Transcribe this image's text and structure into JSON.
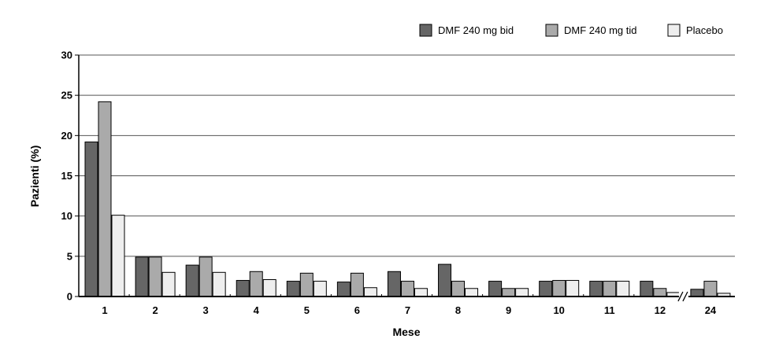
{
  "chart_data": {
    "type": "bar",
    "categories": [
      "1",
      "2",
      "3",
      "4",
      "5",
      "6",
      "7",
      "8",
      "9",
      "10",
      "11",
      "12",
      "24"
    ],
    "series": [
      {
        "name": "DMF 240 mg bid",
        "color": "#666666",
        "values": [
          19.2,
          4.9,
          3.9,
          2.0,
          1.9,
          1.8,
          3.1,
          4.0,
          1.9,
          1.9,
          1.9,
          1.9,
          0.9
        ]
      },
      {
        "name": "DMF 240 mg tid",
        "color": "#aaaaaa",
        "values": [
          24.2,
          4.9,
          4.9,
          3.1,
          2.9,
          2.9,
          1.9,
          1.9,
          1.0,
          2.0,
          1.9,
          1.0,
          1.9
        ]
      },
      {
        "name": "Placebo",
        "color": "#eeeeee",
        "values": [
          10.1,
          3.0,
          3.0,
          2.1,
          1.9,
          1.1,
          1.0,
          1.0,
          1.0,
          2.0,
          1.9,
          0.5,
          0.4
        ]
      }
    ],
    "xlabel": "Mese",
    "ylabel": "Pazienti (%)",
    "yticks": [
      "0",
      "5",
      "10",
      "15",
      "20",
      "25",
      "30"
    ],
    "ylim": [
      0,
      30
    ],
    "grid": true,
    "legend_position": "top-right",
    "axis_break_before": "24"
  }
}
